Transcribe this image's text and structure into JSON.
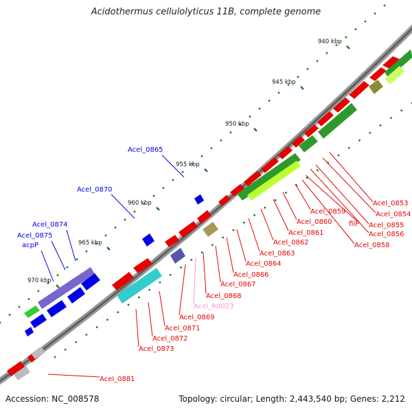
{
  "title": "Acidothermus cellulolyticus 11B, complete genome",
  "footer": {
    "accession": "Accession: NC_008578",
    "topology": "Topology: circular; Length: 2,443,540 bp; Genes: 2,212"
  },
  "colors": {
    "forward_cds": "#e60000",
    "reverse_cds": "#0000e6",
    "rna_label": "#ff99cc",
    "backbone": "#808080",
    "tick": "#1a7a1a"
  },
  "ruler": [
    {
      "label": "940 kbp"
    },
    {
      "label": "945 kbp"
    },
    {
      "label": "950 kbp"
    },
    {
      "label": "955 kbp"
    },
    {
      "label": "960 kbp"
    },
    {
      "label": "965 kbp"
    },
    {
      "label": "970 kbp"
    }
  ],
  "gene_labels": [
    {
      "name": "Acel_0865",
      "strand": "reverse"
    },
    {
      "name": "Acel_0870",
      "strand": "reverse"
    },
    {
      "name": "Acel_0874",
      "strand": "reverse"
    },
    {
      "name": "Acel_0875",
      "strand": "reverse"
    },
    {
      "name": "acpP",
      "strand": "reverse"
    },
    {
      "name": "Acel_0853",
      "strand": "forward"
    },
    {
      "name": "Acel_0854",
      "strand": "forward"
    },
    {
      "name": "Acel_0855",
      "strand": "forward"
    },
    {
      "name": "Acel_0856",
      "strand": "forward"
    },
    {
      "name": "fliP",
      "strand": "forward"
    },
    {
      "name": "Acel_0858",
      "strand": "forward"
    },
    {
      "name": "Acel_0859",
      "strand": "forward"
    },
    {
      "name": "Acel_0860",
      "strand": "forward"
    },
    {
      "name": "Acel_0861",
      "strand": "forward"
    },
    {
      "name": "Acel_0862",
      "strand": "forward"
    },
    {
      "name": "Acel_0863",
      "strand": "forward"
    },
    {
      "name": "Acel_0864",
      "strand": "forward"
    },
    {
      "name": "Acel_0866",
      "strand": "forward"
    },
    {
      "name": "Acel_0867",
      "strand": "forward"
    },
    {
      "name": "Acel_0868",
      "strand": "forward"
    },
    {
      "name": "Acel_R0023",
      "strand": "rna"
    },
    {
      "name": "Acel_0869",
      "strand": "forward"
    },
    {
      "name": "Acel_0871",
      "strand": "forward"
    },
    {
      "name": "Acel_0872",
      "strand": "forward"
    },
    {
      "name": "Acel_0873",
      "strand": "forward"
    },
    {
      "name": "Acel_0881",
      "strand": "forward"
    }
  ]
}
